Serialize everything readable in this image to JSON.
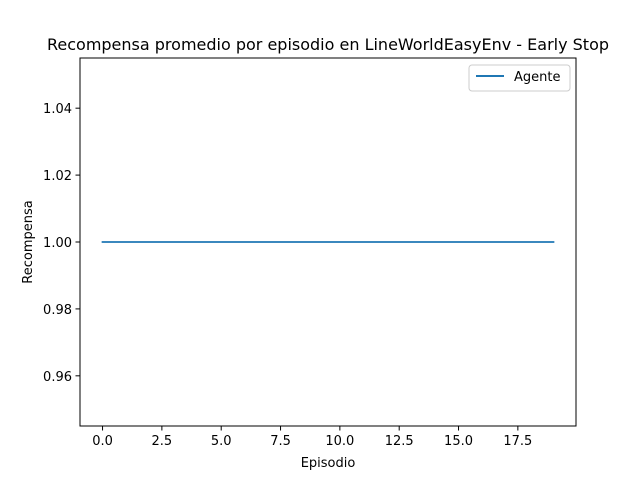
{
  "chart_data": {
    "type": "line",
    "title": "Recompensa promedio por episodio en LineWorldEasyEnv - Early Stop",
    "xlabel": "Episodio",
    "ylabel": "Recompensa",
    "xlim": [
      -0.95,
      19.95
    ],
    "ylim": [
      0.945,
      1.055
    ],
    "xticks": [
      0.0,
      2.5,
      5.0,
      7.5,
      10.0,
      12.5,
      15.0,
      17.5
    ],
    "xtick_labels": [
      "0.0",
      "2.5",
      "5.0",
      "7.5",
      "10.0",
      "12.5",
      "15.0",
      "17.5"
    ],
    "yticks": [
      0.96,
      0.98,
      1.0,
      1.02,
      1.04
    ],
    "ytick_labels": [
      "0.96",
      "0.98",
      "1.00",
      "1.02",
      "1.04"
    ],
    "grid": false,
    "legend_position": "top-right",
    "series": [
      {
        "name": "Agente",
        "color": "#1f77b4",
        "x": [
          0,
          1,
          2,
          3,
          4,
          5,
          6,
          7,
          8,
          9,
          10,
          11,
          12,
          13,
          14,
          15,
          16,
          17,
          18,
          19
        ],
        "y": [
          1,
          1,
          1,
          1,
          1,
          1,
          1,
          1,
          1,
          1,
          1,
          1,
          1,
          1,
          1,
          1,
          1,
          1,
          1,
          1
        ]
      }
    ]
  }
}
